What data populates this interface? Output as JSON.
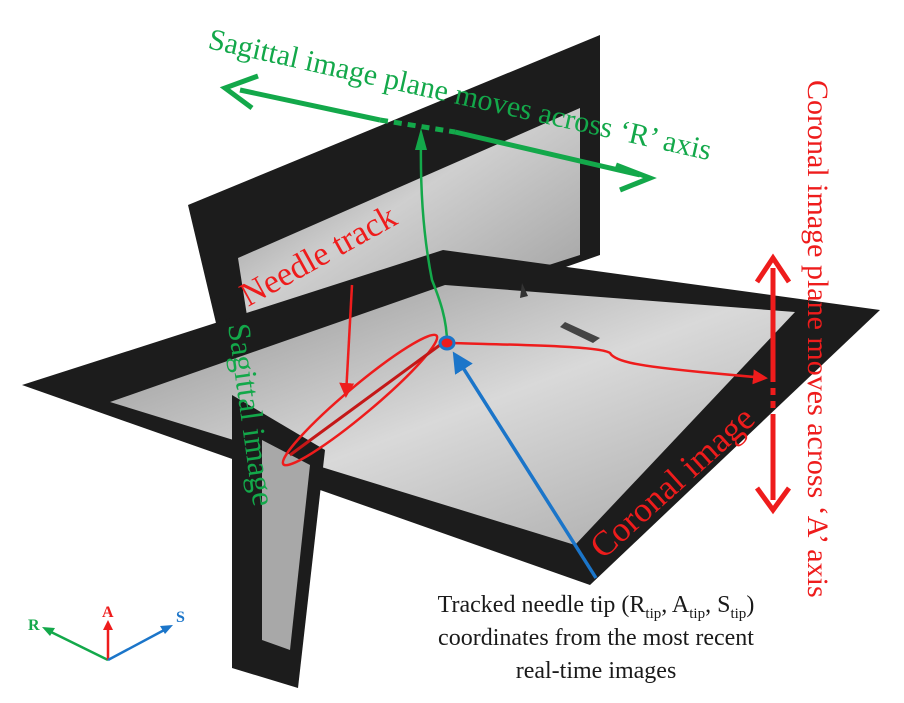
{
  "labels": {
    "sagittal_axis_caption": "Sagittal image plane moves across ‘R’ axis",
    "coronal_axis_caption": "Coronal image plane moves across ‘A’ axis",
    "needle_track": "Needle track",
    "sagittal_image": "Sagittal image",
    "coronal_image": "Coronal image",
    "caption_line1_prefix": "Tracked needle tip (R",
    "caption_sub_r": "tip",
    "caption_sep1": ", A",
    "caption_sub_a": "tip",
    "caption_sep2": ", S",
    "caption_sub_s": "tip",
    "caption_line1_suffix": ")",
    "caption_line2": "coordinates from the most recent",
    "caption_line3": "real-time images"
  },
  "axes": {
    "r": "R",
    "a": "A",
    "s": "S"
  },
  "colors": {
    "green": "#13a84a",
    "red": "#ee1c1c",
    "blue": "#1b75c9",
    "dark": "#1a1a1a"
  }
}
